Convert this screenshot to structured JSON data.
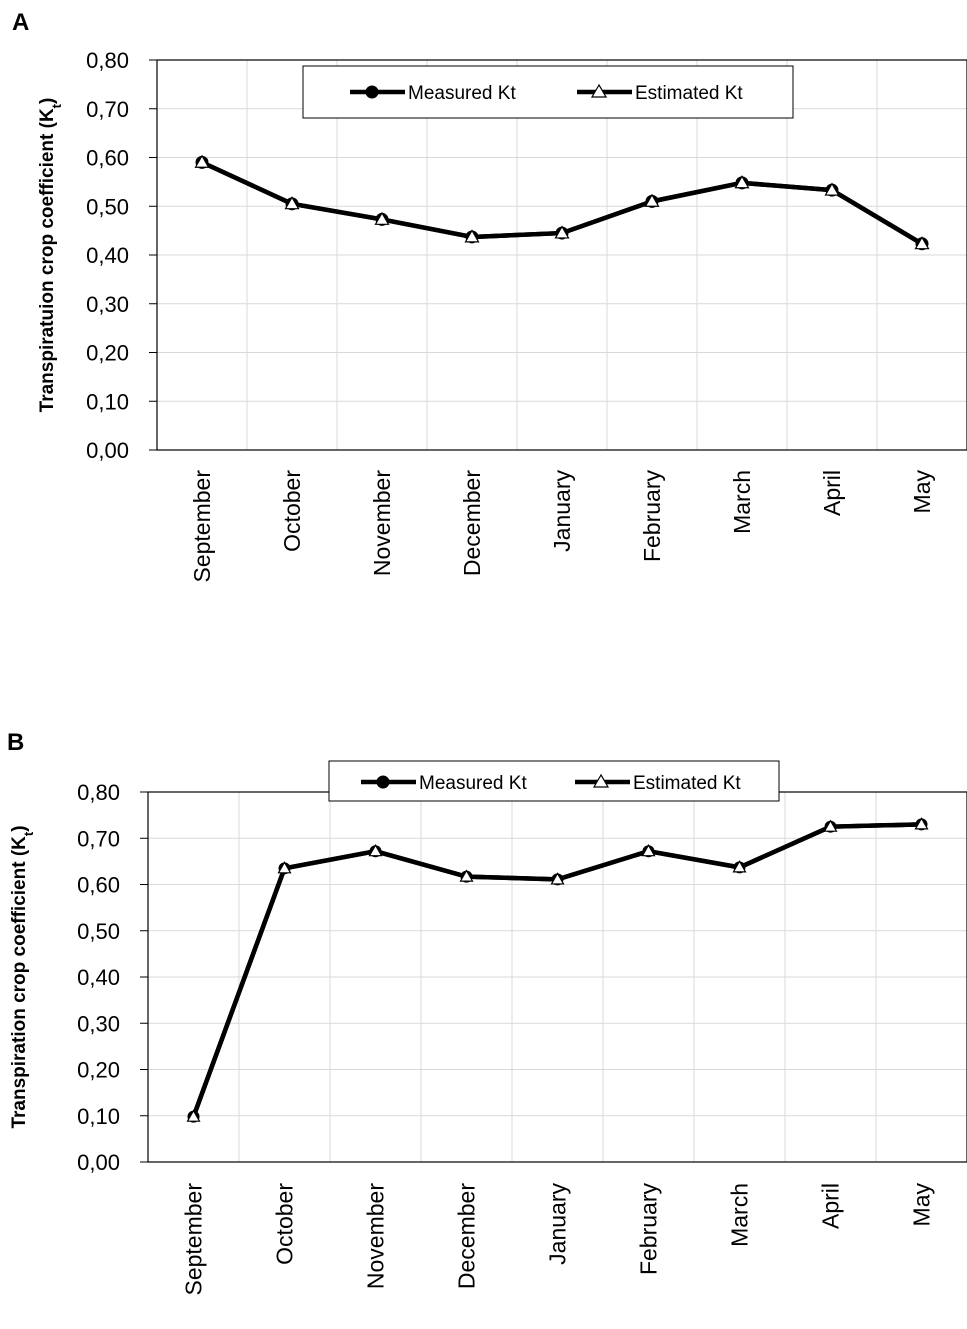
{
  "chart_data": [
    {
      "panel_label": "A",
      "type": "line",
      "ylabel": "Transpiratuion crop coefficient (K",
      "ylabel_sub": "t",
      "ylabel_end": ")",
      "categories": [
        "September",
        "October",
        "November",
        "December",
        "January",
        "February",
        "March",
        "April",
        "May"
      ],
      "yticks": [
        "0,00",
        "0,10",
        "0,20",
        "0,30",
        "0,40",
        "0,50",
        "0,60",
        "0,70",
        "0,80"
      ],
      "ylim": [
        0,
        0.8
      ],
      "grid": true,
      "legend_position": "top-center",
      "series": [
        {
          "name": "Measured Kt",
          "marker": "circle",
          "values": [
            0.59,
            0.505,
            0.473,
            0.437,
            0.445,
            0.51,
            0.548,
            0.533,
            0.423
          ]
        },
        {
          "name": "Estimated Kt",
          "marker": "triangle",
          "values": [
            0.59,
            0.505,
            0.473,
            0.437,
            0.445,
            0.51,
            0.548,
            0.533,
            0.423
          ]
        }
      ]
    },
    {
      "panel_label": "B",
      "type": "line",
      "ylabel": "Transpiration crop coefficient (K",
      "ylabel_sub": "t",
      "ylabel_end": ")",
      "categories": [
        "September",
        "October",
        "November",
        "December",
        "January",
        "February",
        "March",
        "April",
        "May"
      ],
      "yticks": [
        "0,00",
        "0,10",
        "0,20",
        "0,30",
        "0,40",
        "0,50",
        "0,60",
        "0,70",
        "0,80"
      ],
      "ylim": [
        0,
        0.8
      ],
      "grid": true,
      "legend_position": "top-center",
      "series": [
        {
          "name": "Measured Kt",
          "marker": "circle",
          "values": [
            0.098,
            0.635,
            0.672,
            0.617,
            0.611,
            0.672,
            0.637,
            0.725,
            0.73
          ]
        },
        {
          "name": "Estimated Kt",
          "marker": "triangle",
          "values": [
            0.098,
            0.635,
            0.672,
            0.617,
            0.611,
            0.672,
            0.637,
            0.725,
            0.73
          ]
        }
      ]
    }
  ],
  "colors": {
    "line": "#000000",
    "grid": "#d9d9d9",
    "axis": "#000000",
    "text": "#000000"
  }
}
